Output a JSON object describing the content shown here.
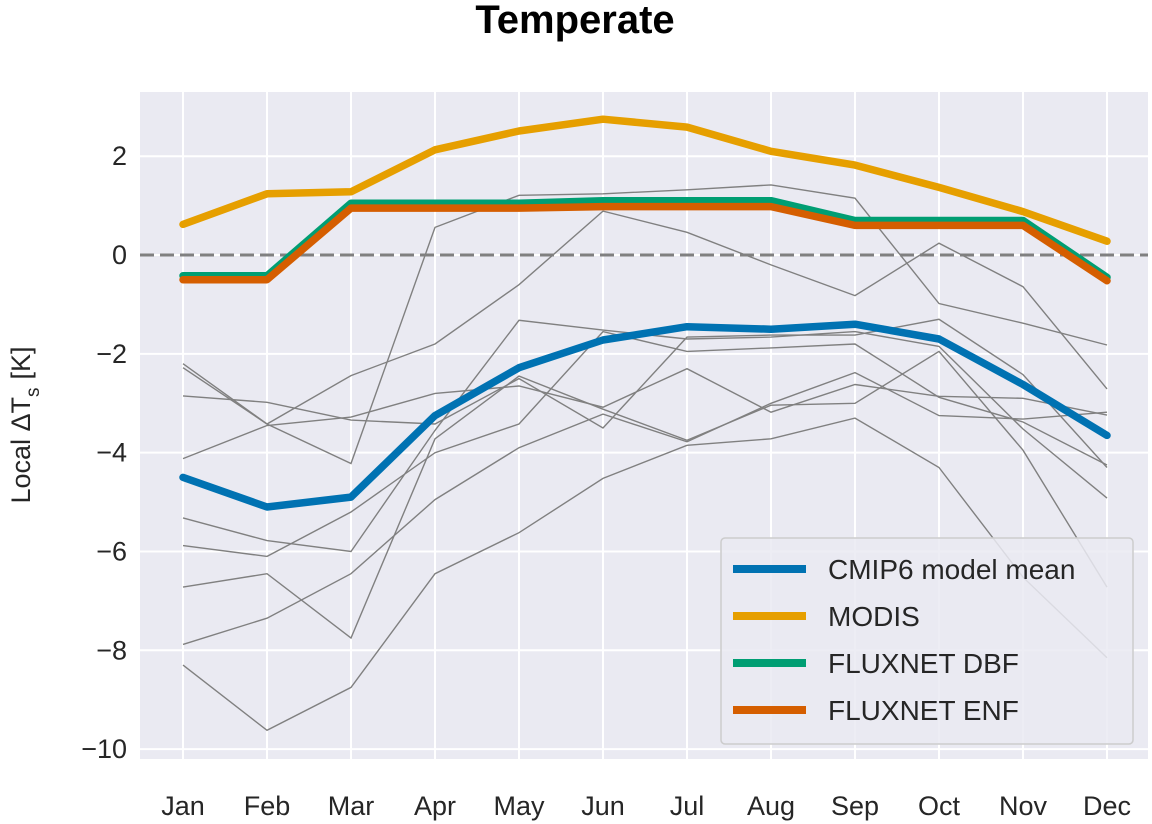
{
  "chart_data": {
    "type": "line",
    "title": "Temperate",
    "xlabel": "",
    "ylabel": "Local ΔT",
    "ylabel_subscript": "s",
    "ylabel_unit": "[K]",
    "categories": [
      "Jan",
      "Feb",
      "Mar",
      "Apr",
      "May",
      "Jun",
      "Jul",
      "Aug",
      "Sep",
      "Oct",
      "Nov",
      "Dec"
    ],
    "ylim": [
      -10.2,
      3.3
    ],
    "yticks": [
      2,
      0,
      -2,
      -4,
      -6,
      -8,
      -10
    ],
    "ytick_labels": [
      "2",
      "0",
      "−2",
      "−4",
      "−6",
      "−8",
      "−10"
    ],
    "zero_line": 0,
    "grid": true,
    "legend_position": "lower-right",
    "series": [
      {
        "name": "CMIP6 model mean",
        "color": "#0072b2",
        "role": "highlight",
        "values": [
          -4.5,
          -5.1,
          -4.9,
          -3.25,
          -2.28,
          -1.72,
          -1.45,
          -1.5,
          -1.4,
          -1.7,
          -2.62,
          -3.65
        ]
      },
      {
        "name": "MODIS",
        "color": "#e69f00",
        "role": "highlight",
        "values": [
          0.62,
          1.24,
          1.28,
          2.13,
          2.51,
          2.75,
          2.59,
          2.1,
          1.82,
          1.37,
          0.88,
          0.28
        ]
      },
      {
        "name": "FLUXNET DBF",
        "color": "#009e73",
        "role": "highlight",
        "values": [
          -0.42,
          -0.42,
          1.05,
          1.05,
          1.05,
          1.1,
          1.1,
          1.1,
          0.7,
          0.7,
          0.7,
          -0.45
        ]
      },
      {
        "name": "FLUXNET ENF",
        "color": "#d55e00",
        "role": "highlight",
        "values": [
          -0.5,
          -0.5,
          0.95,
          0.95,
          0.95,
          0.98,
          0.98,
          0.98,
          0.6,
          0.6,
          0.6,
          -0.52
        ]
      }
    ],
    "individual_models": {
      "color": "#808080",
      "values": [
        [
          -2.2,
          -3.42,
          -4.22,
          0.56,
          1.21,
          1.24,
          1.32,
          1.42,
          1.15,
          -0.98,
          -1.38,
          -1.82
        ],
        [
          -2.28,
          -3.42,
          -2.44,
          -1.8,
          -0.6,
          0.89,
          0.46,
          -0.2,
          -0.82,
          0.24,
          -0.64,
          -2.71
        ],
        [
          -2.85,
          -2.98,
          -3.34,
          -3.42,
          -2.5,
          -3.5,
          -1.66,
          -1.62,
          -1.62,
          -1.3,
          -2.42,
          -4.3
        ],
        [
          -4.12,
          -3.45,
          -3.28,
          -2.8,
          -2.65,
          -3.08,
          -2.3,
          -3.18,
          -2.62,
          -2.86,
          -2.9,
          -3.24
        ],
        [
          -5.32,
          -5.78,
          -6.0,
          -3.55,
          -1.32,
          -1.52,
          -1.7,
          -1.66,
          -1.55,
          -1.85,
          -3.52,
          -4.92
        ],
        [
          -5.88,
          -6.1,
          -5.2,
          -4.0,
          -3.42,
          -1.55,
          -1.95,
          -1.88,
          -1.8,
          -2.88,
          -3.38,
          -4.25
        ],
        [
          -6.72,
          -6.45,
          -7.75,
          -3.72,
          -2.45,
          -3.12,
          -3.75,
          -3.04,
          -3.0,
          -1.95,
          -3.95,
          -6.72
        ],
        [
          -7.88,
          -7.35,
          -6.45,
          -4.95,
          -3.9,
          -3.22,
          -3.78,
          -3.0,
          -2.38,
          -3.25,
          -3.32,
          -3.18
        ],
        [
          -8.3,
          -9.62,
          -8.75,
          -6.45,
          -5.62,
          -4.52,
          -3.85,
          -3.72,
          -3.3,
          -4.3,
          -6.52,
          -8.15
        ]
      ]
    }
  }
}
